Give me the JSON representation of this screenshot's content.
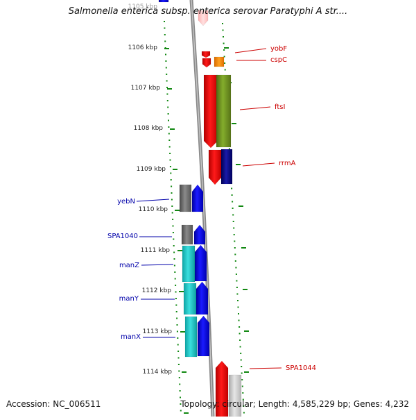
{
  "title": "Salmonella enterica subsp. enterica serovar Paratyphi A str....",
  "footer": {
    "accession": "Accession: NC_006511",
    "summary": "Topology: circular; Length: 4,585,229 bp; Genes: 4,232"
  },
  "map": {
    "ruler_labels": [
      "1105 kbp",
      "1106 kbp",
      "1107 kbp",
      "1108 kbp",
      "1109 kbp",
      "1110 kbp",
      "1111 kbp",
      "1112 kbp",
      "1113 kbp",
      "1114 kbp"
    ],
    "genes_right": [
      "yobF",
      "cspC",
      "ftsI",
      "rrmA",
      "SPA1044"
    ],
    "genes_left": [
      "yebN",
      "SPA1040",
      "manZ",
      "manY",
      "manX"
    ],
    "colors": {
      "forward_gene": "#ff0000",
      "reverse_gene": "#0000ff",
      "right_label": "#cc0000",
      "left_label": "#0000aa",
      "orange_gene": "#ff8c00",
      "olive_gene": "#6b8e23",
      "teal_gene": "#1ec8c8",
      "dark_grey_gene": "#666666",
      "navy_gene": "#000080",
      "light_grey_gene": "#c8c8c8",
      "tick_green": "#118811",
      "backbone": "#888888"
    }
  }
}
